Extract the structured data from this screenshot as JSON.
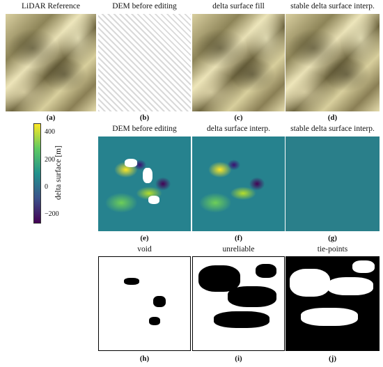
{
  "row1": {
    "titles": [
      "LiDAR Reference",
      "DEM before editing",
      "delta surface fill",
      "stable delta surface interp."
    ],
    "labels": [
      "(a)",
      "(b)",
      "(c)",
      "(d)"
    ]
  },
  "row2": {
    "titles": [
      "DEM before editing",
      "delta surface interp.",
      "stable delta surface interp."
    ],
    "labels": [
      "(e)",
      "(f)",
      "(g)"
    ]
  },
  "row3": {
    "titles": [
      "void",
      "unreliable",
      "tie-points"
    ],
    "labels": [
      "(h)",
      "(i)",
      "(j)"
    ]
  },
  "colorbar": {
    "label": "delta surface [m]",
    "ticks": [
      "400",
      "200",
      "0",
      "−200"
    ]
  }
}
